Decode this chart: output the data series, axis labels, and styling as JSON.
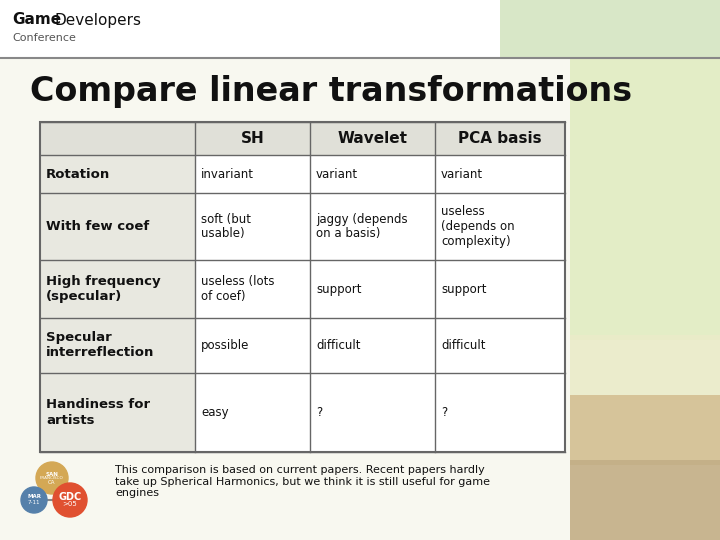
{
  "title": "Compare linear transformations",
  "slide_bg": "#f8f8f0",
  "header_bg": "#ffffff",
  "col_headers": [
    "",
    "SH",
    "Wavelet",
    "PCA basis"
  ],
  "rows": [
    {
      "label": "Rotation",
      "values": [
        "invariant",
        "variant",
        "variant"
      ]
    },
    {
      "label": "With few coef",
      "values": [
        "soft (but\nusable)",
        "jaggy (depends\non a basis)",
        "useless\n(depends on\ncomplexity)"
      ]
    },
    {
      "label": "High frequency\n(specular)",
      "values": [
        "useless (lots\nof coef)",
        "support",
        "support"
      ]
    },
    {
      "label": "Specular\ninterreflection",
      "values": [
        "possible",
        "difficult",
        "difficult"
      ]
    },
    {
      "label": "Handiness for\nartists",
      "values": [
        "easy",
        "?",
        "?"
      ]
    }
  ],
  "footnote": "This comparison is based on current papers. Recent papers hardly\ntake up Spherical Harmonics, but we think it is still useful for game\nengines",
  "table_line_color": "#666666",
  "header_row_bg": "#e0e0d8",
  "label_col_bg": "#e8e8e0",
  "cell_bg": "#ffffff",
  "text_color": "#111111",
  "gdc_top_circle_color": "#d4a855",
  "gdc_left_circle_color": "#5580aa",
  "gdc_right_circle_color": "#e05030",
  "header_sep_color": "#888888"
}
